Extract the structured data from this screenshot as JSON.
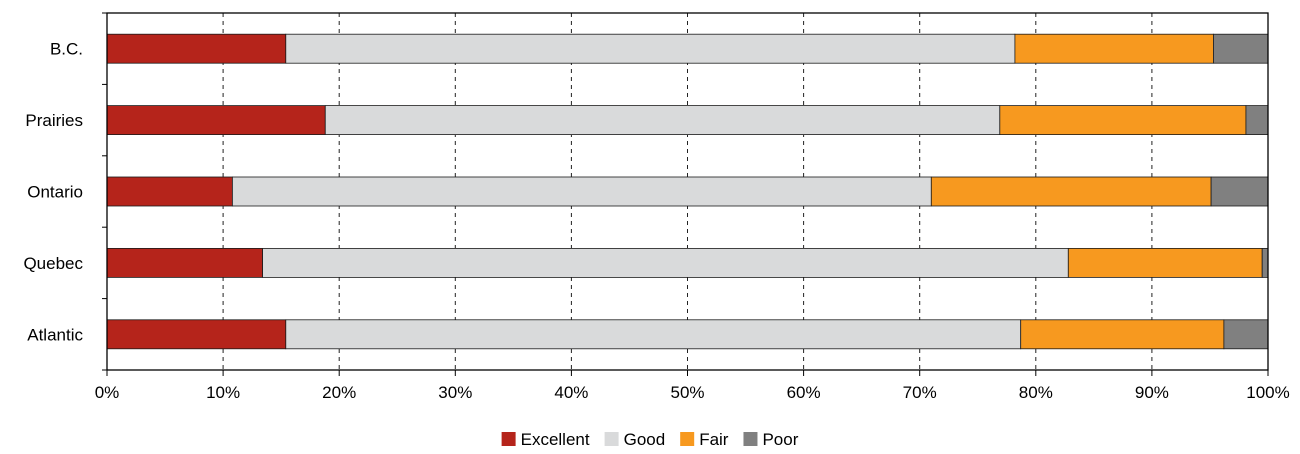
{
  "chart_data": {
    "type": "bar",
    "orientation": "horizontal",
    "stacked": true,
    "categories": [
      "B.C.",
      "Prairies",
      "Ontario",
      "Quebec",
      "Atlantic"
    ],
    "series": [
      {
        "name": "Excellent",
        "color": "#b5241b",
        "values": [
          15.4,
          18.8,
          10.8,
          13.4,
          15.4
        ]
      },
      {
        "name": "Good",
        "color": "#d9dadb",
        "values": [
          62.8,
          58.1,
          60.2,
          69.4,
          63.3
        ]
      },
      {
        "name": "Fair",
        "color": "#f7991f",
        "values": [
          17.1,
          21.2,
          24.1,
          16.7,
          17.5
        ]
      },
      {
        "name": "Poor",
        "color": "#808080",
        "values": [
          4.7,
          1.9,
          4.9,
          0.5,
          3.8
        ]
      }
    ],
    "xlim": [
      0,
      100
    ],
    "xticks": [
      "0%",
      "10%",
      "20%",
      "30%",
      "40%",
      "50%",
      "60%",
      "70%",
      "80%",
      "90%",
      "100%"
    ],
    "grid": "vertical dashed",
    "legend_position": "bottom-center",
    "title": "",
    "xlabel": "",
    "ylabel": ""
  }
}
